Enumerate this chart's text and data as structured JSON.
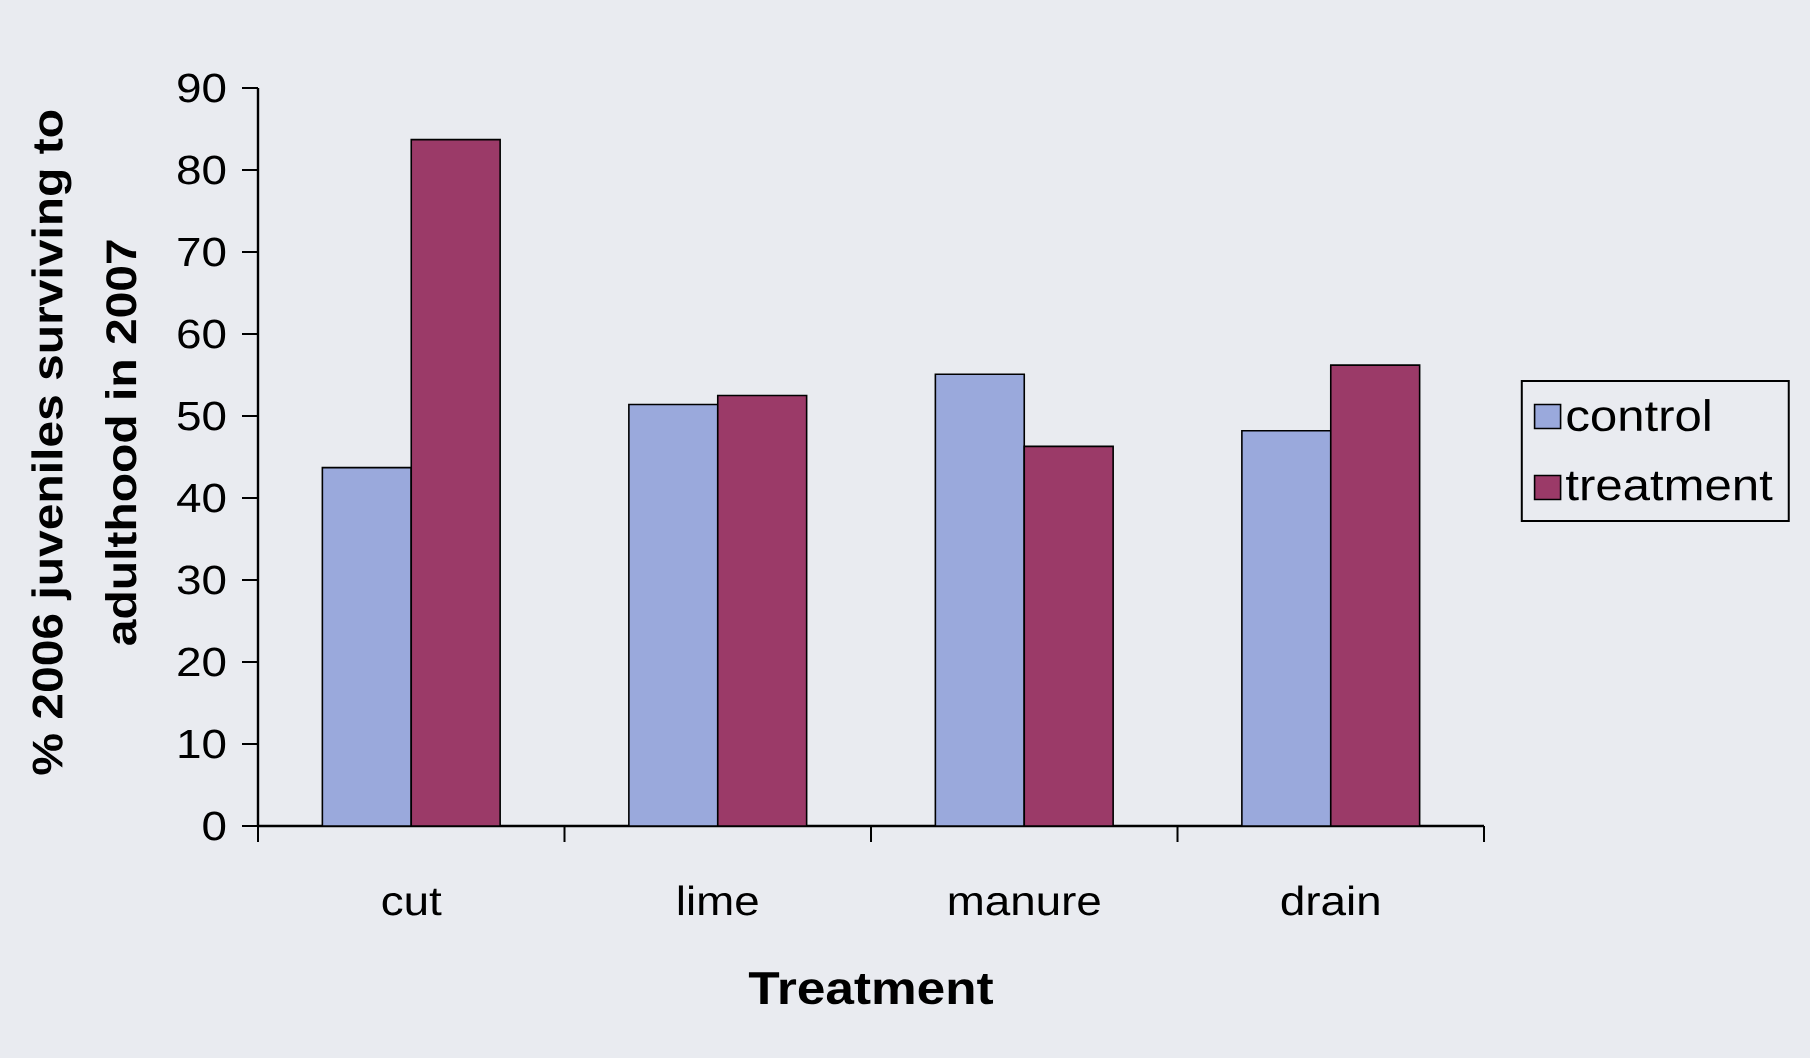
{
  "chart_data": {
    "type": "bar",
    "xlabel": "Treatment",
    "ylabel": "% 2006 juveniles surviving to adulthood in 2007",
    "categories": [
      "cut",
      "lime",
      "manure",
      "drain"
    ],
    "series": [
      {
        "name": "control",
        "color": "#9aa9dc",
        "values": [
          43.7,
          51.4,
          55.1,
          48.2
        ]
      },
      {
        "name": "treatment",
        "color": "#9b3a68",
        "values": [
          83.7,
          52.5,
          46.3,
          56.2
        ]
      }
    ],
    "ylim": [
      0,
      90
    ],
    "yticks": [
      0,
      10,
      20,
      30,
      40,
      50,
      60,
      70,
      80,
      90
    ],
    "legend": "right",
    "grid": false
  }
}
